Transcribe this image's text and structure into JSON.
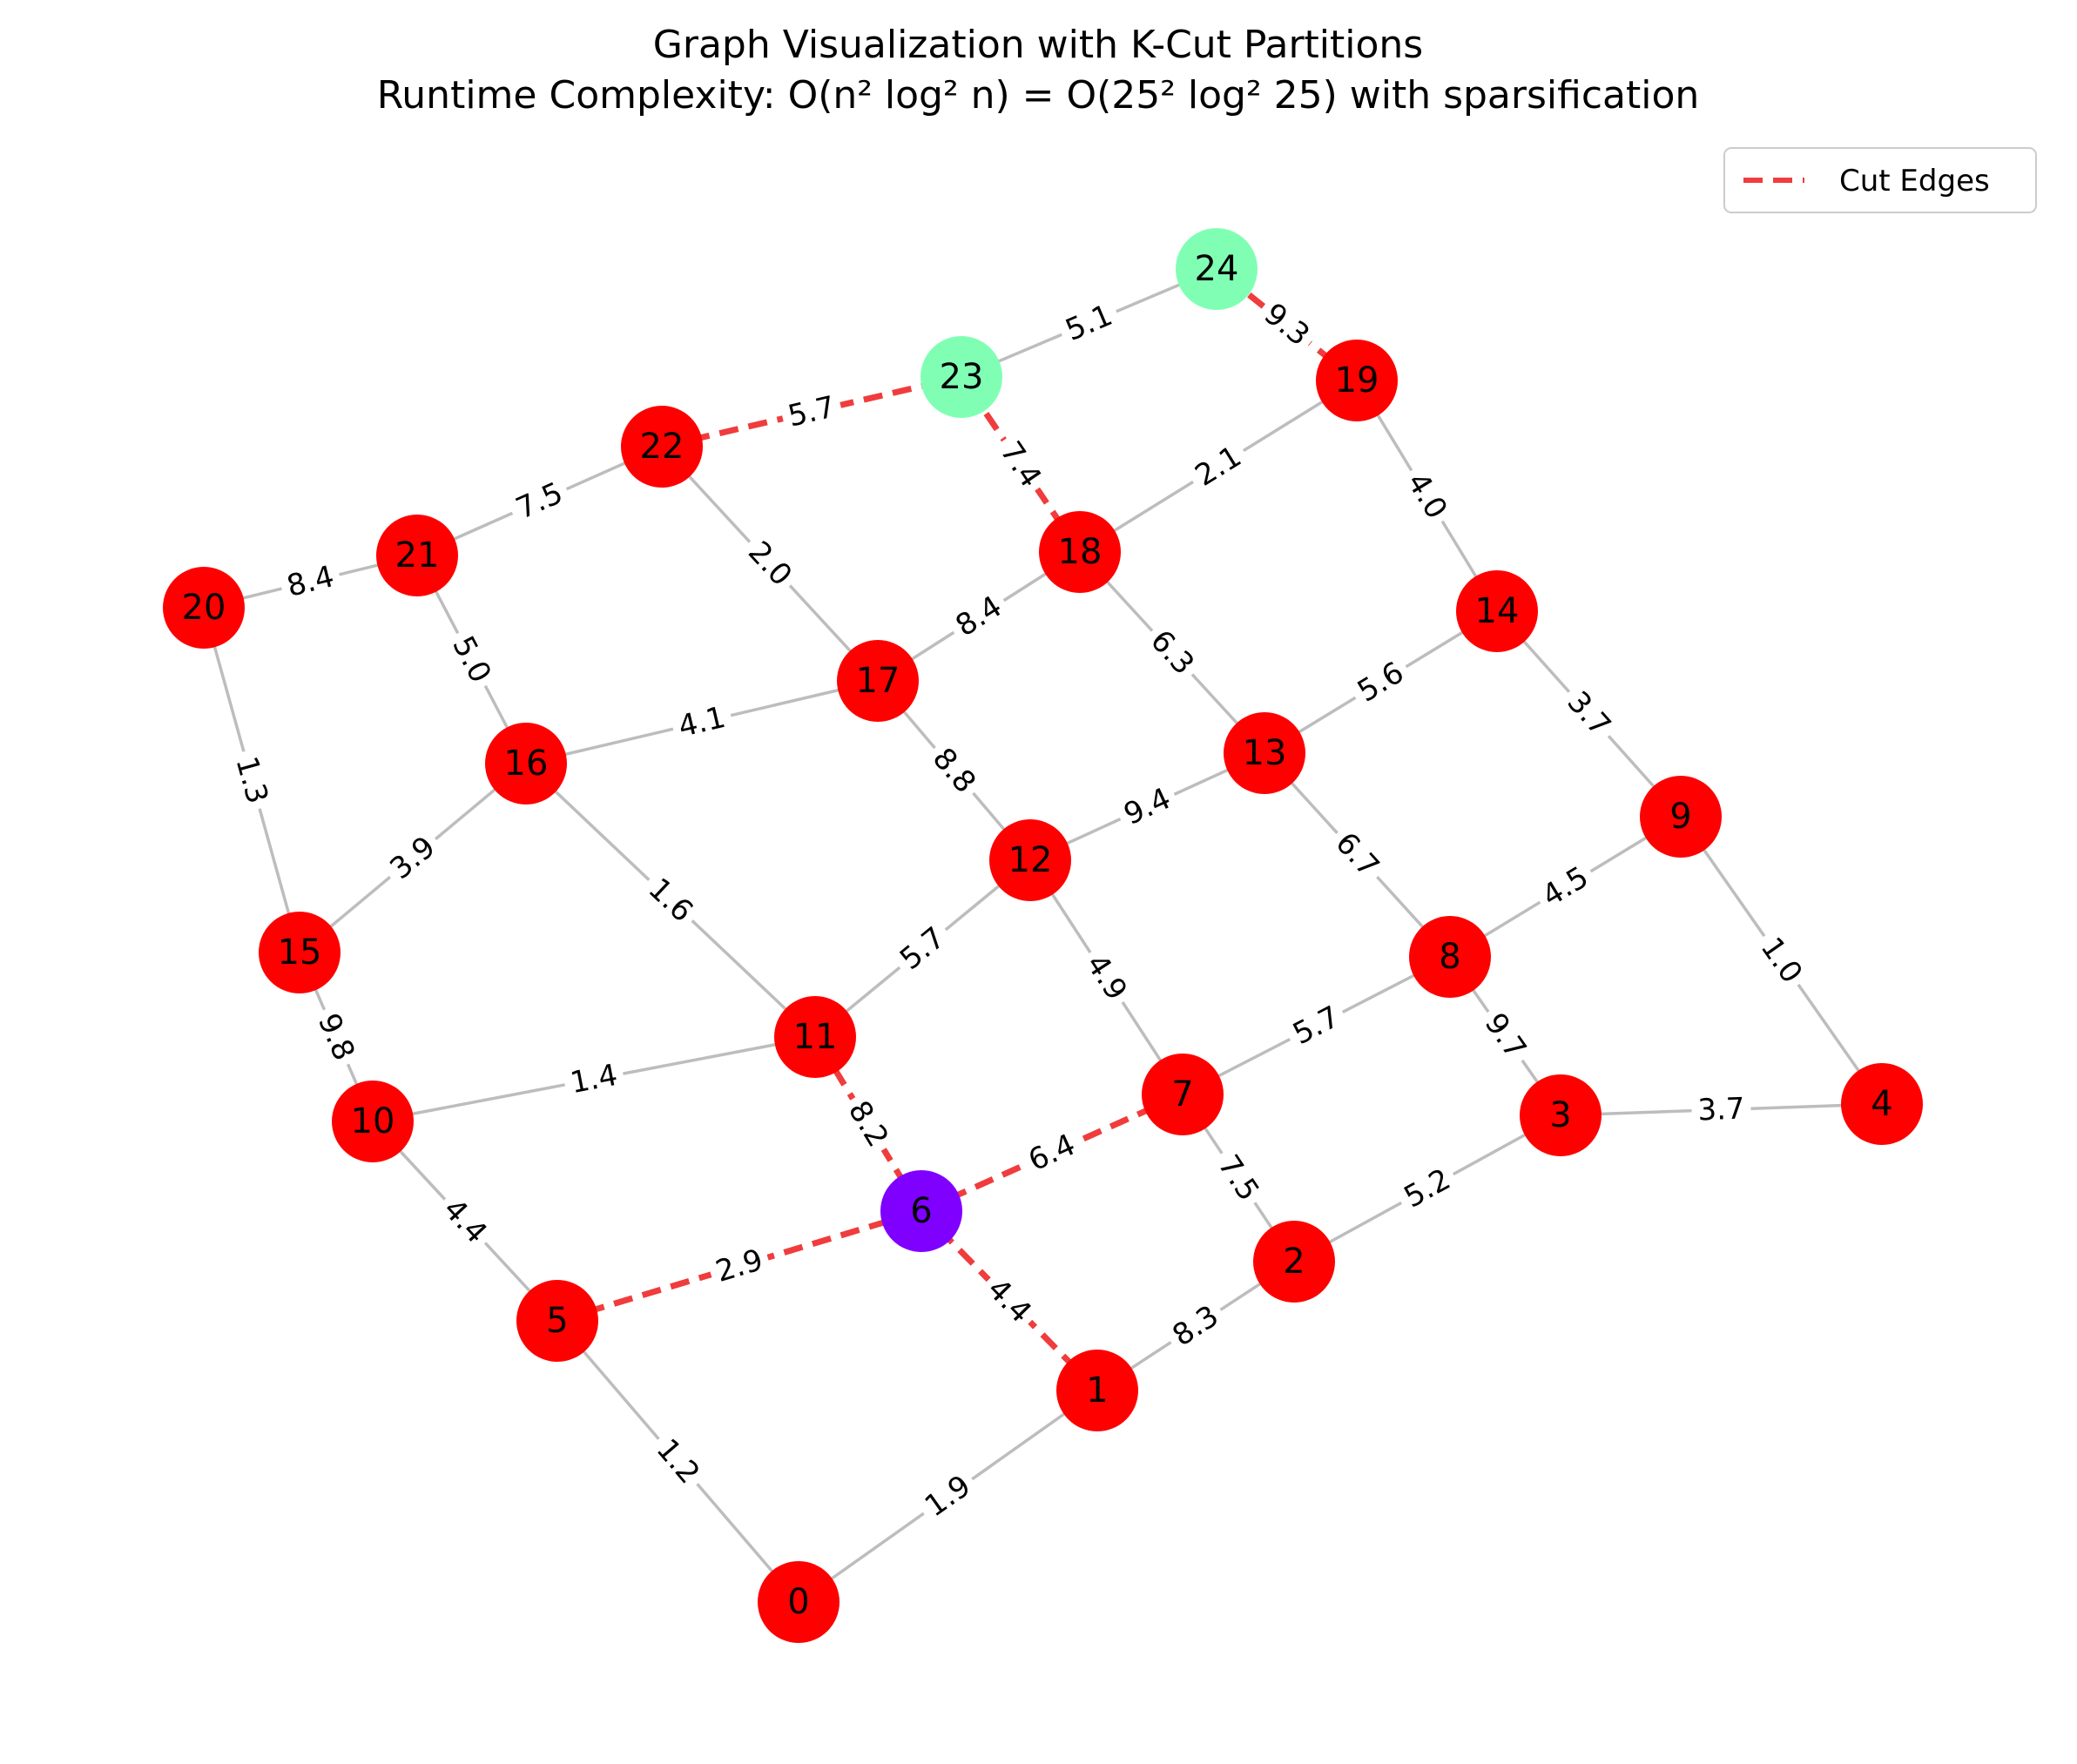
{
  "title": {
    "line1": "Graph Visualization with K-Cut Partitions",
    "line2": "Runtime Complexity: O(n² log² n) = O(25² log² 25) with sparsification"
  },
  "legend": {
    "cut_label": "Cut Edges"
  },
  "colors": {
    "partition_red": "#ff0000",
    "partition_green": "#80ffb4",
    "partition_purple": "#8000ff",
    "normal_edge": "#bdbdbd",
    "cut_edge": "#f03c3c"
  },
  "diagram": {
    "nodes": [
      {
        "id": "0",
        "label": "0",
        "partition": "red"
      },
      {
        "id": "1",
        "label": "1",
        "partition": "red"
      },
      {
        "id": "2",
        "label": "2",
        "partition": "red"
      },
      {
        "id": "3",
        "label": "3",
        "partition": "red"
      },
      {
        "id": "4",
        "label": "4",
        "partition": "red"
      },
      {
        "id": "5",
        "label": "5",
        "partition": "red"
      },
      {
        "id": "6",
        "label": "6",
        "partition": "purple"
      },
      {
        "id": "7",
        "label": "7",
        "partition": "red"
      },
      {
        "id": "8",
        "label": "8",
        "partition": "red"
      },
      {
        "id": "9",
        "label": "9",
        "partition": "red"
      },
      {
        "id": "10",
        "label": "10",
        "partition": "red"
      },
      {
        "id": "11",
        "label": "11",
        "partition": "red"
      },
      {
        "id": "12",
        "label": "12",
        "partition": "red"
      },
      {
        "id": "13",
        "label": "13",
        "partition": "red"
      },
      {
        "id": "14",
        "label": "14",
        "partition": "red"
      },
      {
        "id": "15",
        "label": "15",
        "partition": "red"
      },
      {
        "id": "16",
        "label": "16",
        "partition": "red"
      },
      {
        "id": "17",
        "label": "17",
        "partition": "red"
      },
      {
        "id": "18",
        "label": "18",
        "partition": "red"
      },
      {
        "id": "19",
        "label": "19",
        "partition": "red"
      },
      {
        "id": "20",
        "label": "20",
        "partition": "red"
      },
      {
        "id": "21",
        "label": "21",
        "partition": "red"
      },
      {
        "id": "22",
        "label": "22",
        "partition": "red"
      },
      {
        "id": "23",
        "label": "23",
        "partition": "green"
      },
      {
        "id": "24",
        "label": "24",
        "partition": "green"
      }
    ],
    "edges": [
      {
        "from": "0",
        "to": "5",
        "weight": "1.2",
        "cut": false
      },
      {
        "from": "0",
        "to": "1",
        "weight": "1.9",
        "cut": false
      },
      {
        "from": "1",
        "to": "2",
        "weight": "8.3",
        "cut": false
      },
      {
        "from": "1",
        "to": "6",
        "weight": "4.4",
        "cut": true
      },
      {
        "from": "2",
        "to": "3",
        "weight": "5.2",
        "cut": false
      },
      {
        "from": "2",
        "to": "7",
        "weight": "7.5",
        "cut": false
      },
      {
        "from": "3",
        "to": "4",
        "weight": "3.7",
        "cut": false
      },
      {
        "from": "3",
        "to": "8",
        "weight": "9.7",
        "cut": false
      },
      {
        "from": "4",
        "to": "9",
        "weight": "1.0",
        "cut": false
      },
      {
        "from": "5",
        "to": "6",
        "weight": "2.9",
        "cut": true
      },
      {
        "from": "5",
        "to": "10",
        "weight": "4.4",
        "cut": false
      },
      {
        "from": "6",
        "to": "7",
        "weight": "6.4",
        "cut": true
      },
      {
        "from": "6",
        "to": "11",
        "weight": "8.2",
        "cut": true
      },
      {
        "from": "7",
        "to": "8",
        "weight": "5.7",
        "cut": false
      },
      {
        "from": "7",
        "to": "12",
        "weight": "4.9",
        "cut": false
      },
      {
        "from": "8",
        "to": "9",
        "weight": "4.5",
        "cut": false
      },
      {
        "from": "8",
        "to": "13",
        "weight": "6.7",
        "cut": false
      },
      {
        "from": "9",
        "to": "14",
        "weight": "3.7",
        "cut": false
      },
      {
        "from": "10",
        "to": "11",
        "weight": "1.4",
        "cut": false
      },
      {
        "from": "10",
        "to": "15",
        "weight": "9.8",
        "cut": false
      },
      {
        "from": "11",
        "to": "12",
        "weight": "5.7",
        "cut": false
      },
      {
        "from": "11",
        "to": "16",
        "weight": "1.6",
        "cut": false
      },
      {
        "from": "12",
        "to": "13",
        "weight": "9.4",
        "cut": false
      },
      {
        "from": "12",
        "to": "17",
        "weight": "8.8",
        "cut": false
      },
      {
        "from": "13",
        "to": "14",
        "weight": "5.6",
        "cut": false
      },
      {
        "from": "13",
        "to": "18",
        "weight": "6.3",
        "cut": false
      },
      {
        "from": "14",
        "to": "19",
        "weight": "4.0",
        "cut": false
      },
      {
        "from": "15",
        "to": "16",
        "weight": "3.9",
        "cut": false
      },
      {
        "from": "15",
        "to": "20",
        "weight": "1.3",
        "cut": false
      },
      {
        "from": "16",
        "to": "17",
        "weight": "4.1",
        "cut": false
      },
      {
        "from": "16",
        "to": "21",
        "weight": "5.0",
        "cut": false
      },
      {
        "from": "17",
        "to": "18",
        "weight": "8.4",
        "cut": false
      },
      {
        "from": "17",
        "to": "22",
        "weight": "2.0",
        "cut": false
      },
      {
        "from": "18",
        "to": "19",
        "weight": "2.1",
        "cut": false
      },
      {
        "from": "18",
        "to": "23",
        "weight": "7.4",
        "cut": true
      },
      {
        "from": "19",
        "to": "24",
        "weight": "9.3",
        "cut": true
      },
      {
        "from": "20",
        "to": "21",
        "weight": "8.4",
        "cut": false
      },
      {
        "from": "21",
        "to": "22",
        "weight": "7.5",
        "cut": false
      },
      {
        "from": "22",
        "to": "23",
        "weight": "5.7",
        "cut": true
      },
      {
        "from": "23",
        "to": "24",
        "weight": "5.1",
        "cut": false
      }
    ]
  }
}
